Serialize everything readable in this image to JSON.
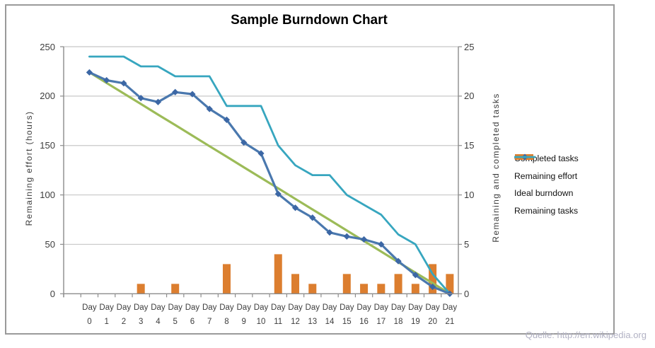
{
  "title": "Sample Burndown Chart",
  "watermark": "Quelle: http://en.wikipedia.org",
  "chart_data": {
    "type": "combo-bar-line",
    "title": "Sample Burndown Chart",
    "x_label_word": "Day",
    "x_day_numbers": [
      "0",
      "1",
      "2",
      "3",
      "4",
      "5",
      "6",
      "7",
      "8",
      "9",
      "10",
      "11",
      "12",
      "13",
      "14",
      "15",
      "16",
      "17",
      "18",
      "19",
      "20",
      "21"
    ],
    "x_categories": [
      "Day 0",
      "Day 1",
      "Day 2",
      "Day 3",
      "Day 4",
      "Day 5",
      "Day 6",
      "Day 7",
      "Day 8",
      "Day 9",
      "Day 10",
      "Day 11",
      "Day 12",
      "Day 13",
      "Day 14",
      "Day 15",
      "Day 16",
      "Day 17",
      "Day 18",
      "Day 19",
      "Day 20",
      "Day 21"
    ],
    "grid": true,
    "legend_position": "right",
    "left_axis": {
      "title": "Remaining effort (hours)",
      "min": 0,
      "max": 250,
      "step": 50,
      "tick_labels": [
        "0",
        "50",
        "100",
        "150",
        "200",
        "250"
      ]
    },
    "right_axis": {
      "title": "Remaining and completed tasks",
      "min": 0,
      "max": 25,
      "step": 5,
      "tick_labels": [
        "0",
        "5",
        "10",
        "15",
        "20",
        "25"
      ]
    },
    "series": [
      {
        "name": "Completed tasks",
        "type": "bar",
        "axis": "right",
        "color": "#dc7e2f",
        "values": [
          0,
          0,
          0,
          1,
          0,
          1,
          0,
          0,
          3,
          0,
          0,
          4,
          2,
          1,
          0,
          2,
          1,
          1,
          2,
          1,
          3,
          2
        ]
      },
      {
        "name": "Remaining effort",
        "type": "line",
        "axis": "left",
        "color": "#4a78ae",
        "marker": "diamond",
        "marker_color": "#3c67a5",
        "values": [
          224,
          216,
          213,
          198,
          194,
          204,
          202,
          187,
          176,
          153,
          142,
          101,
          87,
          77,
          62,
          58,
          55,
          50,
          33,
          19,
          7,
          0
        ]
      },
      {
        "name": "Ideal burndown",
        "type": "line",
        "axis": "left",
        "color": "#9cbb58",
        "values": [
          224,
          213.3,
          202.7,
          192,
          181.3,
          170.7,
          160,
          149.3,
          138.7,
          128,
          117.3,
          106.7,
          96,
          85.3,
          74.7,
          64,
          53.3,
          42.7,
          32,
          21.3,
          10.7,
          0
        ]
      },
      {
        "name": "Remaining tasks",
        "type": "line",
        "axis": "right",
        "color": "#37a6bf",
        "values": [
          24,
          24,
          24,
          23,
          23,
          22,
          22,
          22,
          19,
          19,
          19,
          15,
          13,
          12,
          12,
          10,
          9,
          8,
          6,
          5,
          2,
          0
        ]
      }
    ],
    "colors": {
      "gridline": "#c8c8c8",
      "axis_line": "#8c8c8c",
      "tick_text": "#3d3d3d",
      "title_text": "#000000",
      "watermark_text": "#b2b2c4",
      "frame_border": "#9a9a9a"
    }
  }
}
